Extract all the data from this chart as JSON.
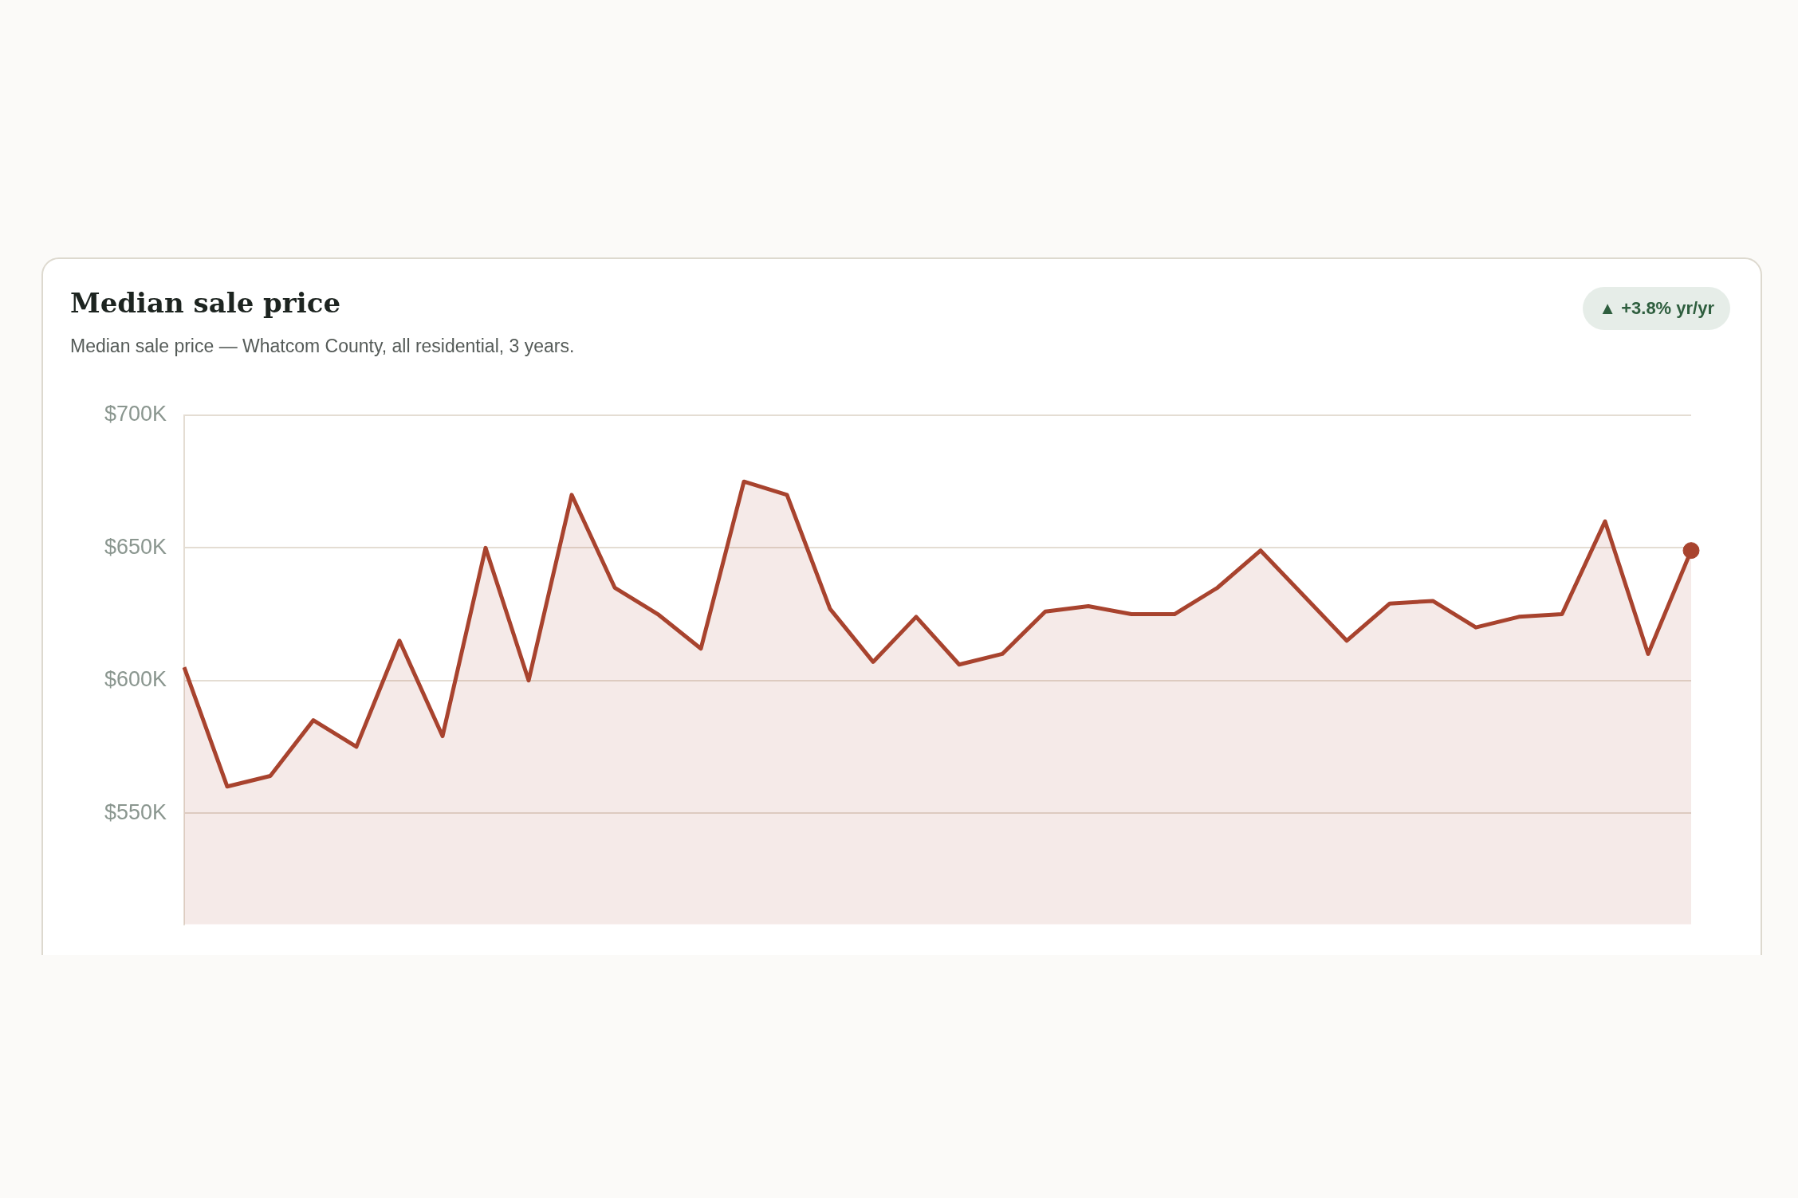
{
  "chart_data": {
    "type": "area",
    "title": "Median sale price",
    "subtitle": "Median sale price — Whatcom County, all residential, 3 years.",
    "annotations": [
      "▲ +3.8% yr/yr"
    ],
    "categories": [
      null,
      null,
      null,
      null,
      null,
      null,
      null,
      null,
      null,
      null,
      null,
      null,
      null,
      null,
      null,
      null,
      null,
      null,
      null,
      null,
      null,
      null,
      null,
      null,
      null,
      null,
      null,
      null,
      null,
      null,
      null,
      null,
      null,
      null,
      null,
      null
    ],
    "series": [
      {
        "color": "#a8432e",
        "values": [
          605,
          560,
          564,
          585,
          575,
          615,
          579,
          650,
          600,
          670,
          635,
          625,
          612,
          675,
          670,
          627,
          607,
          624,
          606,
          610,
          626,
          628,
          625,
          625,
          635,
          649,
          632,
          615,
          629,
          630,
          620,
          624,
          625,
          660,
          610,
          649
        ]
      },
      {
        "type": "scatter",
        "color": "#a8432e",
        "values": [
          null,
          null,
          null,
          null,
          null,
          null,
          null,
          null,
          null,
          null,
          null,
          null,
          null,
          null,
          null,
          null,
          null,
          null,
          null,
          null,
          null,
          null,
          null,
          null,
          null,
          null,
          null,
          null,
          null,
          null,
          null,
          null,
          null,
          null,
          null,
          649
        ]
      }
    ],
    "ylim": [
      508,
      700
    ],
    "yticks": [
      {
        "value": 550,
        "label": "$550K"
      },
      {
        "value": 600,
        "label": "$600K"
      },
      {
        "value": 650,
        "label": "$650K"
      },
      {
        "value": 700,
        "label": "$700K"
      }
    ],
    "grid": "y",
    "tick_labels": "y",
    "legend": false
  }
}
